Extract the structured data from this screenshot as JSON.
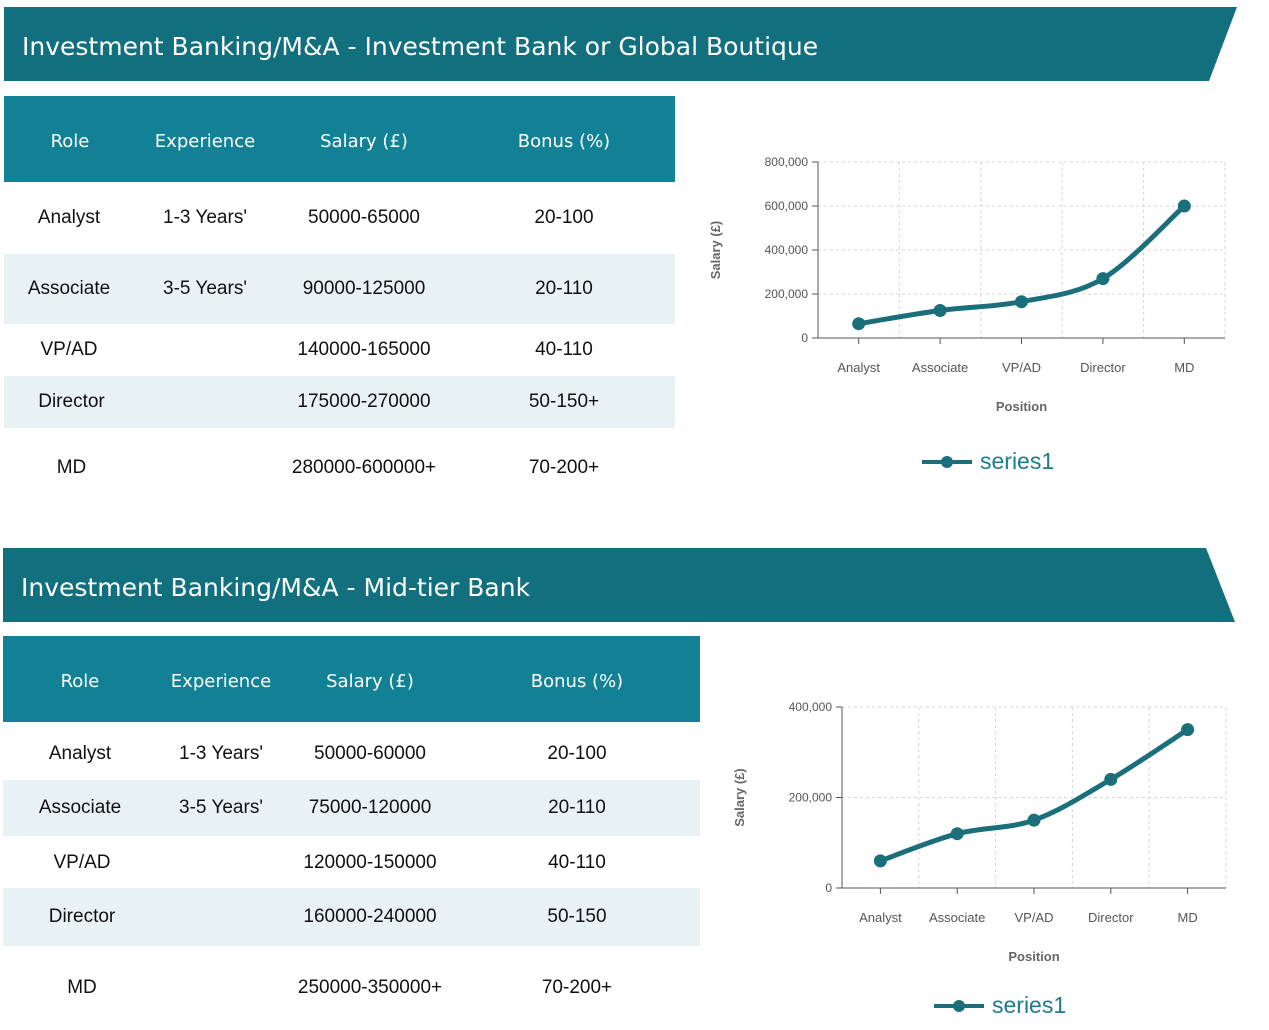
{
  "sections": [
    {
      "title": "Investment Banking/M&A - Investment Bank or Global Boutique",
      "table": {
        "headers": [
          "Role",
          "Experience",
          "Salary (£)",
          "Bonus (%)"
        ],
        "rows": [
          [
            "Analyst",
            "1-3 Years'",
            "50000-65000",
            "20-100"
          ],
          [
            "Associate",
            "3-5 Years'",
            "90000-125000",
            "20-110"
          ],
          [
            "VP/AD",
            "",
            "140000-165000",
            "40-110"
          ],
          [
            "Director",
            "",
            "175000-270000",
            "50-150+"
          ],
          [
            "MD",
            "",
            "280000-600000+",
            "70-200+"
          ]
        ]
      }
    },
    {
      "title": "Investment Banking/M&A - Mid-tier Bank",
      "table": {
        "headers": [
          "Role",
          "Experience",
          "Salary (£)",
          "Bonus (%)"
        ],
        "rows": [
          [
            "Analyst",
            "1-3 Years'",
            "50000-60000",
            "20-100"
          ],
          [
            "Associate",
            "3-5 Years'",
            "75000-120000",
            "20-110"
          ],
          [
            "VP/AD",
            "",
            "120000-150000",
            "40-110"
          ],
          [
            "Director",
            "",
            "160000-240000",
            "50-150"
          ],
          [
            "MD",
            "",
            "250000-350000+",
            "70-200+"
          ]
        ]
      }
    }
  ],
  "colors": {
    "banner": "#116f7e",
    "table_header": "#128196",
    "row_alt": "#e8f2f4",
    "series": "#1a6f7a"
  },
  "chart_data": [
    {
      "type": "line",
      "categories": [
        "Analyst",
        "Associate",
        "VP/AD",
        "Director",
        "MD"
      ],
      "series": [
        {
          "name": "series1",
          "values": [
            65000,
            125000,
            165000,
            270000,
            600000
          ]
        }
      ],
      "xlabel": "Position",
      "ylabel": "Salary (£)",
      "ylim": [
        0,
        800000
      ],
      "yticks": [
        0,
        200000,
        400000,
        600000,
        800000
      ],
      "ytick_labels": [
        "0",
        "200,000",
        "400,000",
        "600,000",
        "800,000"
      ],
      "grid": true,
      "legend": "bottom"
    },
    {
      "type": "line",
      "categories": [
        "Analyst",
        "Associate",
        "VP/AD",
        "Director",
        "MD"
      ],
      "series": [
        {
          "name": "series1",
          "values": [
            60000,
            120000,
            150000,
            240000,
            350000
          ]
        }
      ],
      "xlabel": "Position",
      "ylabel": "Salary (£)",
      "ylim": [
        0,
        400000
      ],
      "yticks": [
        0,
        200000,
        400000
      ],
      "ytick_labels": [
        "0",
        "200,000",
        "400,000"
      ],
      "grid": true,
      "legend": "bottom"
    }
  ]
}
